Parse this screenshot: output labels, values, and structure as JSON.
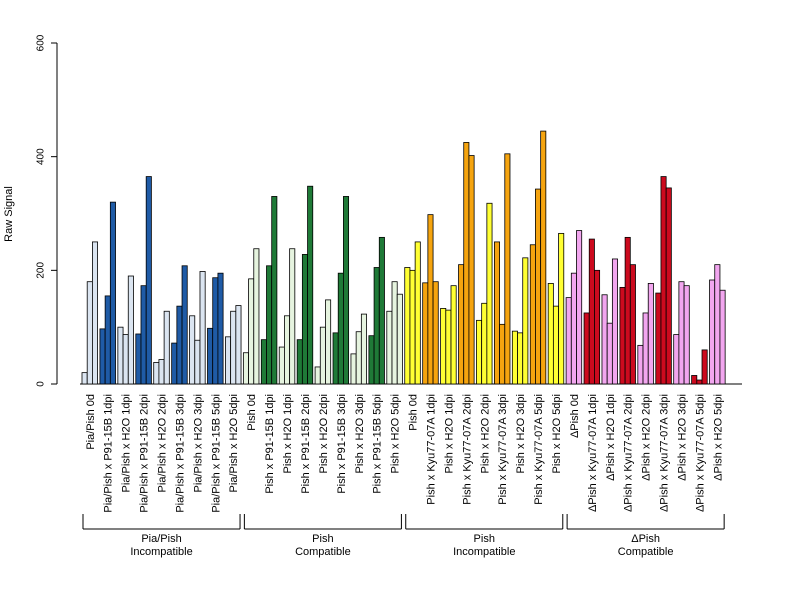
{
  "chart_data": {
    "type": "bar",
    "ylabel": "Raw Signal",
    "ylim": [
      0,
      600
    ],
    "yticks": [
      0,
      200,
      400,
      600
    ],
    "colors": {
      "dark_blue": "#1f5ba6",
      "light_blue": "#dbe5f1",
      "dark_green": "#1f7a37",
      "light_green": "#e6f4df",
      "orange": "#f5a40f",
      "yellow": "#ffff33",
      "red": "#cc0a1e",
      "pink": "#f2a6ef"
    },
    "categories": [
      {
        "label": "Pia/Pish 0d",
        "values": [
          20,
          180,
          250
        ],
        "colors": [
          "light_blue",
          "light_blue",
          "light_blue"
        ]
      },
      {
        "label": "Pia/Pish x P91-15B 1dpi",
        "values": [
          97,
          155,
          320
        ],
        "colors": [
          "dark_blue",
          "dark_blue",
          "dark_blue"
        ]
      },
      {
        "label": "Pia/Pish x H2O 1dpi",
        "values": [
          100,
          87,
          190
        ],
        "colors": [
          "light_blue",
          "light_blue",
          "light_blue"
        ]
      },
      {
        "label": "Pia/Pish x P91-15B 2dpi",
        "values": [
          88,
          173,
          365
        ],
        "colors": [
          "dark_blue",
          "dark_blue",
          "dark_blue"
        ]
      },
      {
        "label": "Pia/Pish x H2O 2dpi",
        "values": [
          38,
          43,
          128
        ],
        "colors": [
          "light_blue",
          "light_blue",
          "light_blue"
        ]
      },
      {
        "label": "Pia/Pish x P91-15B 3dpi",
        "values": [
          72,
          137,
          208
        ],
        "colors": [
          "dark_blue",
          "dark_blue",
          "dark_blue"
        ]
      },
      {
        "label": "Pia/Pish x H2O 3dpi",
        "values": [
          120,
          77,
          198
        ],
        "colors": [
          "light_blue",
          "light_blue",
          "light_blue"
        ]
      },
      {
        "label": "Pia/Pish x P91-15B 5dpi",
        "values": [
          98,
          187,
          195
        ],
        "colors": [
          "dark_blue",
          "dark_blue",
          "dark_blue"
        ]
      },
      {
        "label": "Pia/Pish x H2O 5dpi",
        "values": [
          83,
          128,
          138
        ],
        "colors": [
          "light_blue",
          "light_blue",
          "light_blue"
        ]
      },
      {
        "label": "Pish 0d",
        "values": [
          55,
          185,
          238
        ],
        "colors": [
          "light_green",
          "light_green",
          "light_green"
        ]
      },
      {
        "label": "Pish x P91-15B 1dpi",
        "values": [
          78,
          208,
          330
        ],
        "colors": [
          "dark_green",
          "dark_green",
          "dark_green"
        ]
      },
      {
        "label": "Pish x H2O 1dpi",
        "values": [
          65,
          120,
          238
        ],
        "colors": [
          "light_green",
          "light_green",
          "light_green"
        ]
      },
      {
        "label": "Pish x P91-15B 2dpi",
        "values": [
          78,
          228,
          348
        ],
        "colors": [
          "dark_green",
          "dark_green",
          "dark_green"
        ]
      },
      {
        "label": "Pish x H2O 2dpi",
        "values": [
          30,
          100,
          148
        ],
        "colors": [
          "light_green",
          "light_green",
          "light_green"
        ]
      },
      {
        "label": "Pish x P91-15B 3dpi",
        "values": [
          90,
          195,
          330
        ],
        "colors": [
          "dark_green",
          "dark_green",
          "dark_green"
        ]
      },
      {
        "label": "Pish x H2O 3dpi",
        "values": [
          53,
          92,
          123
        ],
        "colors": [
          "light_green",
          "light_green",
          "light_green"
        ]
      },
      {
        "label": "Pish x P91-15B 5dpi",
        "values": [
          85,
          205,
          258
        ],
        "colors": [
          "dark_green",
          "dark_green",
          "dark_green"
        ]
      },
      {
        "label": "Pish x H2O 5dpi",
        "values": [
          128,
          180,
          158
        ],
        "colors": [
          "light_green",
          "light_green",
          "light_green"
        ]
      },
      {
        "label": "Pish 0d",
        "values": [
          205,
          200,
          250
        ],
        "colors": [
          "yellow",
          "yellow",
          "yellow"
        ]
      },
      {
        "label": "Pish x Kyu77-07A 1dpi",
        "values": [
          178,
          298,
          180
        ],
        "colors": [
          "orange",
          "orange",
          "orange"
        ]
      },
      {
        "label": "Pish x H2O 1dpi",
        "values": [
          133,
          130,
          173
        ],
        "colors": [
          "yellow",
          "yellow",
          "yellow"
        ]
      },
      {
        "label": "Pish x Kyu77-07A 2dpi",
        "values": [
          210,
          425,
          402
        ],
        "colors": [
          "orange",
          "orange",
          "orange"
        ]
      },
      {
        "label": "Pish x H2O 2dpi",
        "values": [
          112,
          142,
          318
        ],
        "colors": [
          "yellow",
          "yellow",
          "yellow"
        ]
      },
      {
        "label": "Pish x Kyu77-07A 3dpi",
        "values": [
          250,
          105,
          405
        ],
        "colors": [
          "orange",
          "orange",
          "orange"
        ]
      },
      {
        "label": "Pish x H2O 3dpi",
        "values": [
          93,
          90,
          222
        ],
        "colors": [
          "yellow",
          "yellow",
          "yellow"
        ]
      },
      {
        "label": "Pish x Kyu77-07A 5dpi",
        "values": [
          245,
          343,
          445
        ],
        "colors": [
          "orange",
          "orange",
          "orange"
        ]
      },
      {
        "label": "Pish x H2O 5dpi",
        "values": [
          177,
          137,
          265
        ],
        "colors": [
          "yellow",
          "yellow",
          "yellow"
        ]
      },
      {
        "label": "ΔPish 0d",
        "values": [
          152,
          195,
          270
        ],
        "colors": [
          "pink",
          "pink",
          "pink"
        ]
      },
      {
        "label": "ΔPish x Kyu77-07A 1dpi",
        "values": [
          125,
          255,
          200
        ],
        "colors": [
          "red",
          "red",
          "red"
        ]
      },
      {
        "label": "ΔPish x H2O 1dpi",
        "values": [
          157,
          107,
          220
        ],
        "colors": [
          "pink",
          "pink",
          "pink"
        ]
      },
      {
        "label": "ΔPish x Kyu77-07A 2dpi",
        "values": [
          170,
          258,
          210
        ],
        "colors": [
          "red",
          "red",
          "red"
        ]
      },
      {
        "label": "ΔPish x H2O 2dpi",
        "values": [
          68,
          125,
          177
        ],
        "colors": [
          "pink",
          "pink",
          "pink"
        ]
      },
      {
        "label": "ΔPish x Kyu77-07A 3dpi",
        "values": [
          160,
          365,
          345
        ],
        "colors": [
          "red",
          "red",
          "red"
        ]
      },
      {
        "label": "ΔPish x H2O 3dpi",
        "values": [
          87,
          180,
          173
        ],
        "colors": [
          "pink",
          "pink",
          "pink"
        ]
      },
      {
        "label": "ΔPish x Kyu77-07A 5dpi",
        "values": [
          15,
          7,
          60
        ],
        "colors": [
          "red",
          "red",
          "red"
        ]
      },
      {
        "label": "ΔPish x H2O 5dpi",
        "values": [
          183,
          210,
          165
        ],
        "colors": [
          "pink",
          "pink",
          "pink"
        ]
      }
    ],
    "groups": [
      {
        "line1": "Pia/Pish",
        "line2": "Incompatible",
        "start": 0,
        "end": 8
      },
      {
        "line1": "Pish",
        "line2": "Compatible",
        "start": 9,
        "end": 17
      },
      {
        "line1": "Pish",
        "line2": "Incompatible",
        "start": 18,
        "end": 26
      },
      {
        "line1": "ΔPish",
        "line2": "Compatible",
        "start": 27,
        "end": 35
      }
    ]
  }
}
